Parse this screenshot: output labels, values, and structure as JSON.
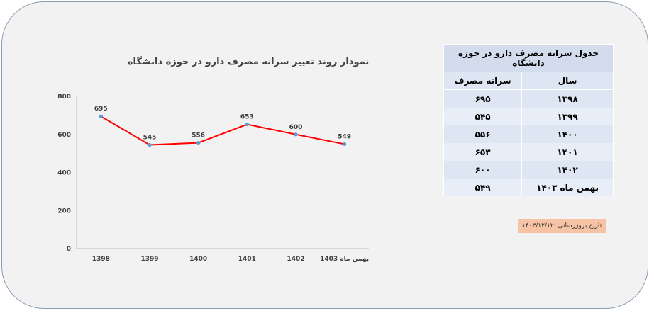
{
  "chart_data": {
    "type": "line",
    "title": "نمودار روند تغییر سرانه مصرف دارو در حوزه دانشگاه",
    "categories": [
      "1398",
      "1399",
      "1400",
      "1401",
      "1402",
      "بهمن ماه 1403"
    ],
    "series": [
      {
        "values": [
          695,
          545,
          556,
          653,
          600,
          549
        ]
      }
    ],
    "ylim": [
      0,
      800
    ],
    "yticks": [
      0,
      200,
      400,
      600,
      800
    ],
    "grid": false,
    "line_color": "#ff0000",
    "marker_color": "#5b9bd5"
  },
  "table": {
    "caption": "جدول سرانه مصرف دارو در حوزه دانشگاه",
    "headers": [
      "سال",
      "سرانه مصرف"
    ],
    "rows": [
      [
        "۱۳۹۸",
        "۶۹۵"
      ],
      [
        "۱۳۹۹",
        "۵۴۵"
      ],
      [
        "۱۴۰۰",
        "۵۵۶"
      ],
      [
        "۱۴۰۱",
        "۶۵۳"
      ],
      [
        "۱۴۰۲",
        "۶۰۰"
      ],
      [
        "بهمن ماه ۱۴۰۳",
        "۵۴۹"
      ]
    ]
  },
  "update_note": "تاریخ بروزرسانی :۱۴۰۳/۱۲/۱۲",
  "colors": {
    "table_header": "#d2dcec",
    "table_row": "#dde6f2",
    "note_bg": "#f6c4a4"
  }
}
